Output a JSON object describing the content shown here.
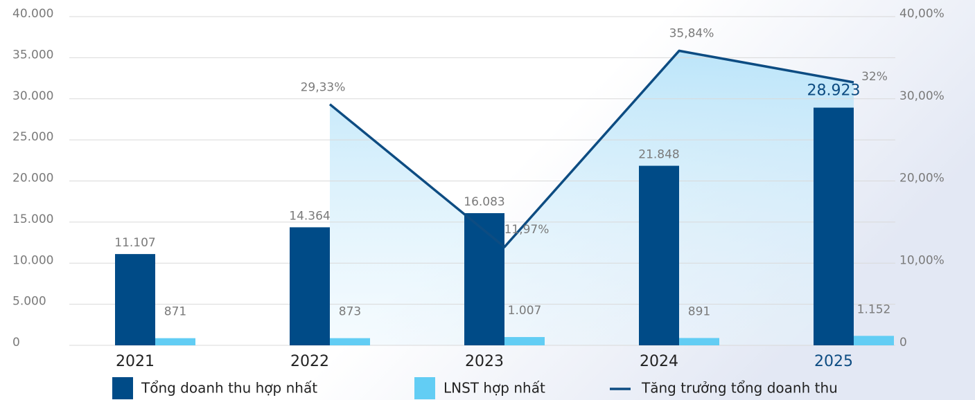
{
  "chart_data": {
    "type": "bar_line",
    "categories": [
      "2021",
      "2022",
      "2023",
      "2024",
      "2025"
    ],
    "series": [
      {
        "name": "Tổng doanh thu hợp nhất",
        "type": "bar",
        "color": "#004b87",
        "values": [
          11107,
          14364,
          16083,
          21848,
          28923
        ],
        "value_labels": [
          "11.107",
          "14.364",
          "16.083",
          "21.848",
          "28.923"
        ]
      },
      {
        "name": "LNST hợp nhất",
        "type": "bar",
        "color": "#62cdf4",
        "values": [
          871,
          873,
          1007,
          891,
          1152
        ],
        "value_labels": [
          "871",
          "873",
          "1.007",
          "891",
          "1.152"
        ]
      },
      {
        "name": "Tăng trưởng tổng doanh thu",
        "type": "line",
        "axis": "y2",
        "color": "#0d4c82",
        "values": [
          null,
          29.33,
          11.97,
          35.84,
          32
        ],
        "value_labels": [
          null,
          "29,33%",
          "11,97%",
          "35,84%",
          "32%"
        ]
      }
    ],
    "ylim": [
      0,
      40000
    ],
    "yticks": [
      0,
      {
        "value": 5000,
        "label": "5.000"
      },
      {
        "value": 10000,
        "label": "10.000"
      },
      {
        "value": 15000,
        "label": "15.000"
      },
      {
        "value": 20000,
        "label": "20.000"
      },
      {
        "value": 25000,
        "label": "25.000"
      },
      {
        "value": 30000,
        "label": "30.000"
      },
      {
        "value": 35000,
        "label": "35.000"
      },
      {
        "value": 40000,
        "label": "40.000"
      }
    ],
    "y2lim": [
      0,
      40
    ],
    "y2ticks": [
      0,
      {
        "value": 10,
        "label": "10,00%"
      },
      {
        "value": 20,
        "label": "20,00%"
      },
      {
        "value": 30,
        "label": "30,00%"
      },
      {
        "value": 40,
        "label": "40,00%"
      }
    ],
    "grid": true
  }
}
